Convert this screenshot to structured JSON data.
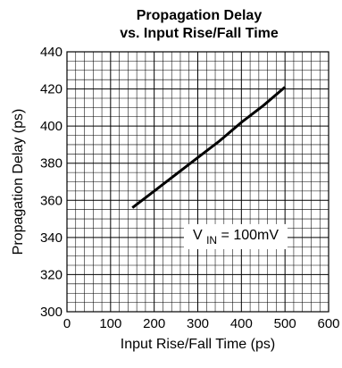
{
  "chart_data": {
    "type": "line",
    "title_lines": [
      "Propagation Delay",
      "vs. Input Rise/Fall Time"
    ],
    "xlabel": "Input Rise/Fall Time (ps)",
    "ylabel": "Propagation Delay (ps)",
    "xlim": [
      0,
      600
    ],
    "ylim": [
      300,
      440
    ],
    "xticks": [
      0,
      100,
      200,
      300,
      400,
      500,
      600
    ],
    "yticks": [
      300,
      320,
      340,
      360,
      380,
      400,
      420,
      440
    ],
    "grid": true,
    "series": [
      {
        "x": [
          150,
          200,
          250,
          300,
          350,
          400,
          450,
          500
        ],
        "y": [
          356,
          365,
          374,
          383,
          392,
          402,
          411,
          421
        ]
      }
    ],
    "annotation": {
      "prefix": "V",
      "subscript": "IN",
      "suffix": " = 100mV",
      "position": "lower-right"
    },
    "colors": {
      "line": "#000000",
      "grid": "#000000",
      "background": "#ffffff"
    }
  }
}
